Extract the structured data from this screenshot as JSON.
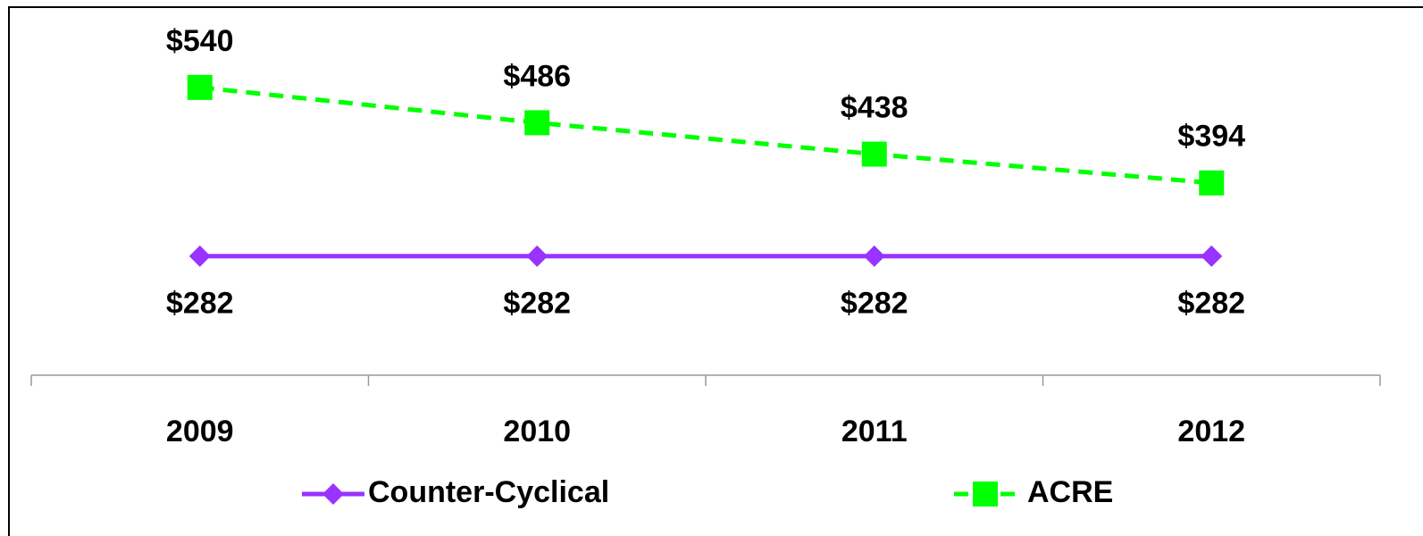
{
  "chart_data": {
    "type": "line",
    "categories": [
      "2009",
      "2010",
      "2011",
      "2012"
    ],
    "series": [
      {
        "name": "Counter-Cyclical",
        "color": "#9933ff",
        "marker": "diamond",
        "dashed": false,
        "values": [
          282,
          282,
          282,
          282
        ],
        "value_labels": [
          "$282",
          "$282",
          "$282",
          "$282"
        ]
      },
      {
        "name": "ACRE",
        "color": "#00ff00",
        "marker": "square",
        "dashed": true,
        "values": [
          540,
          486,
          438,
          394
        ],
        "value_labels": [
          "$540",
          "$486",
          "$438",
          "$394"
        ]
      }
    ],
    "ylim": [
      100,
      660
    ],
    "grid": false,
    "legend": "bottom"
  }
}
